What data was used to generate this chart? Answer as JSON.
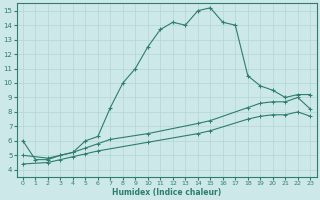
{
  "xlabel": "Humidex (Indice chaleur)",
  "bg_color": "#cce8e8",
  "line_color": "#2e7d6e",
  "grid_color": "#b8d8d8",
  "xlim": [
    -0.5,
    23.5
  ],
  "ylim": [
    3.5,
    15.5
  ],
  "xticks": [
    0,
    1,
    2,
    3,
    4,
    5,
    6,
    7,
    8,
    9,
    10,
    11,
    12,
    13,
    14,
    15,
    16,
    17,
    18,
    19,
    20,
    21,
    22,
    23
  ],
  "yticks": [
    4,
    5,
    6,
    7,
    8,
    9,
    10,
    11,
    12,
    13,
    14,
    15
  ],
  "curve1_x": [
    0,
    1,
    2,
    3,
    4,
    5,
    6,
    7,
    8,
    9,
    10,
    11,
    12,
    13,
    14,
    15,
    16,
    17,
    18,
    19,
    20,
    21,
    22,
    23
  ],
  "curve1_y": [
    6.0,
    4.7,
    4.7,
    5.0,
    5.2,
    6.0,
    6.3,
    8.3,
    10.0,
    11.0,
    12.5,
    13.7,
    14.2,
    14.0,
    15.0,
    15.2,
    14.2,
    14.0,
    10.5,
    9.8,
    9.5,
    9.0,
    9.2,
    9.2
  ],
  "curve2_x": [
    0,
    2,
    3,
    4,
    5,
    6,
    7,
    10,
    14,
    15,
    18,
    19,
    20,
    21,
    22,
    23
  ],
  "curve2_y": [
    5.0,
    4.8,
    5.0,
    5.2,
    5.5,
    5.8,
    6.1,
    6.5,
    7.2,
    7.4,
    8.3,
    8.6,
    8.7,
    8.7,
    9.0,
    8.2
  ],
  "curve3_x": [
    0,
    2,
    3,
    4,
    5,
    6,
    10,
    14,
    15,
    18,
    19,
    20,
    21,
    22,
    23
  ],
  "curve3_y": [
    4.4,
    4.5,
    4.7,
    4.9,
    5.1,
    5.3,
    5.9,
    6.5,
    6.7,
    7.5,
    7.7,
    7.8,
    7.8,
    8.0,
    7.7
  ]
}
